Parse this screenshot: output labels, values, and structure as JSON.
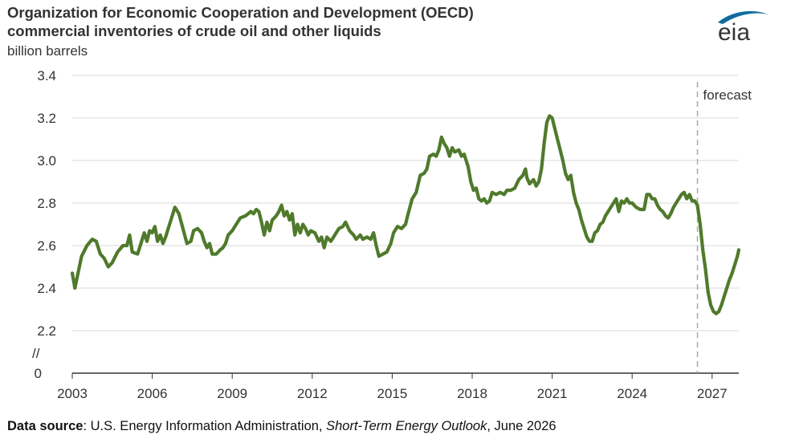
{
  "header": {
    "title_line1": "Organization for Economic Cooperation and Development (OECD)",
    "title_line2": "commercial inventories of crude oil  and other liquids",
    "units": "billion barrels",
    "logo_text": "eia"
  },
  "source": {
    "label": "Data source",
    "text_before": ": U.S. Energy Information Administration, ",
    "publication": "Short-Term Energy Outlook",
    "text_after": ", June 2026"
  },
  "colors": {
    "line": "#4f7a2b",
    "grid": "#d9d9d9",
    "axis": "#333333",
    "forecast_line": "#aaaaaa",
    "logo": "#0f6c9e"
  },
  "chart_data": {
    "type": "line",
    "title": "Organization for Economic Cooperation and Development (OECD) commercial inventories of crude oil  and other liquids",
    "ylabel": "billion barrels",
    "xlabel": "",
    "ylim": [
      2.2,
      3.4
    ],
    "y_axis_break": true,
    "y_ticks": [
      "0",
      "2.2",
      "2.4",
      "2.6",
      "2.8",
      "3.0",
      "3.2",
      "3.4"
    ],
    "y_break_symbol": "//",
    "x_ticks": [
      "2003",
      "2006",
      "2009",
      "2012",
      "2015",
      "2018",
      "2021",
      "2024",
      "2027"
    ],
    "xlim": [
      2003.0,
      2028.0
    ],
    "grid": true,
    "forecast_start": 2026.45,
    "forecast_label": "forecast",
    "series": [
      {
        "values": [
          [
            2003.0,
            2.47
          ],
          [
            2003.1,
            2.4
          ],
          [
            2003.2,
            2.46
          ],
          [
            2003.35,
            2.55
          ],
          [
            2003.55,
            2.6
          ],
          [
            2003.75,
            2.63
          ],
          [
            2003.9,
            2.62
          ],
          [
            2004.05,
            2.56
          ],
          [
            2004.2,
            2.54
          ],
          [
            2004.35,
            2.5
          ],
          [
            2004.5,
            2.52
          ],
          [
            2004.7,
            2.57
          ],
          [
            2004.9,
            2.6
          ],
          [
            2005.05,
            2.6
          ],
          [
            2005.15,
            2.65
          ],
          [
            2005.25,
            2.57
          ],
          [
            2005.45,
            2.56
          ],
          [
            2005.55,
            2.6
          ],
          [
            2005.7,
            2.66
          ],
          [
            2005.8,
            2.62
          ],
          [
            2005.9,
            2.67
          ],
          [
            2006.0,
            2.66
          ],
          [
            2006.1,
            2.69
          ],
          [
            2006.2,
            2.62
          ],
          [
            2006.3,
            2.65
          ],
          [
            2006.4,
            2.61
          ],
          [
            2006.5,
            2.64
          ],
          [
            2006.6,
            2.68
          ],
          [
            2006.75,
            2.74
          ],
          [
            2006.85,
            2.78
          ],
          [
            2007.0,
            2.75
          ],
          [
            2007.15,
            2.68
          ],
          [
            2007.3,
            2.61
          ],
          [
            2007.45,
            2.62
          ],
          [
            2007.55,
            2.67
          ],
          [
            2007.7,
            2.68
          ],
          [
            2007.85,
            2.66
          ],
          [
            2007.95,
            2.62
          ],
          [
            2008.05,
            2.59
          ],
          [
            2008.15,
            2.61
          ],
          [
            2008.25,
            2.56
          ],
          [
            2008.4,
            2.56
          ],
          [
            2008.55,
            2.58
          ],
          [
            2008.65,
            2.59
          ],
          [
            2008.75,
            2.61
          ],
          [
            2008.85,
            2.65
          ],
          [
            2009.0,
            2.67
          ],
          [
            2009.15,
            2.7
          ],
          [
            2009.3,
            2.73
          ],
          [
            2009.5,
            2.74
          ],
          [
            2009.7,
            2.76
          ],
          [
            2009.8,
            2.75
          ],
          [
            2009.9,
            2.77
          ],
          [
            2010.0,
            2.76
          ],
          [
            2010.1,
            2.71
          ],
          [
            2010.2,
            2.65
          ],
          [
            2010.3,
            2.71
          ],
          [
            2010.4,
            2.67
          ],
          [
            2010.5,
            2.72
          ],
          [
            2010.65,
            2.74
          ],
          [
            2010.75,
            2.76
          ],
          [
            2010.85,
            2.79
          ],
          [
            2010.95,
            2.74
          ],
          [
            2011.05,
            2.76
          ],
          [
            2011.15,
            2.72
          ],
          [
            2011.25,
            2.75
          ],
          [
            2011.35,
            2.65
          ],
          [
            2011.45,
            2.7
          ],
          [
            2011.55,
            2.66
          ],
          [
            2011.65,
            2.7
          ],
          [
            2011.75,
            2.68
          ],
          [
            2011.85,
            2.65
          ],
          [
            2011.95,
            2.67
          ],
          [
            2012.1,
            2.66
          ],
          [
            2012.25,
            2.62
          ],
          [
            2012.35,
            2.64
          ],
          [
            2012.45,
            2.59
          ],
          [
            2012.55,
            2.64
          ],
          [
            2012.7,
            2.62
          ],
          [
            2012.85,
            2.65
          ],
          [
            2013.0,
            2.68
          ],
          [
            2013.15,
            2.69
          ],
          [
            2013.25,
            2.71
          ],
          [
            2013.4,
            2.67
          ],
          [
            2013.55,
            2.65
          ],
          [
            2013.65,
            2.63
          ],
          [
            2013.8,
            2.65
          ],
          [
            2013.9,
            2.63
          ],
          [
            2014.05,
            2.64
          ],
          [
            2014.2,
            2.63
          ],
          [
            2014.3,
            2.66
          ],
          [
            2014.4,
            2.6
          ],
          [
            2014.5,
            2.55
          ],
          [
            2014.65,
            2.56
          ],
          [
            2014.8,
            2.57
          ],
          [
            2014.95,
            2.61
          ],
          [
            2015.05,
            2.66
          ],
          [
            2015.2,
            2.69
          ],
          [
            2015.35,
            2.68
          ],
          [
            2015.5,
            2.7
          ],
          [
            2015.6,
            2.75
          ],
          [
            2015.75,
            2.82
          ],
          [
            2015.9,
            2.85
          ],
          [
            2016.05,
            2.93
          ],
          [
            2016.2,
            2.94
          ],
          [
            2016.3,
            2.96
          ],
          [
            2016.4,
            3.02
          ],
          [
            2016.55,
            3.03
          ],
          [
            2016.65,
            3.02
          ],
          [
            2016.75,
            3.05
          ],
          [
            2016.85,
            3.11
          ],
          [
            2016.95,
            3.08
          ],
          [
            2017.05,
            3.06
          ],
          [
            2017.15,
            3.02
          ],
          [
            2017.25,
            3.06
          ],
          [
            2017.35,
            3.04
          ],
          [
            2017.5,
            3.05
          ],
          [
            2017.6,
            3.02
          ],
          [
            2017.7,
            3.03
          ],
          [
            2017.85,
            2.97
          ],
          [
            2017.95,
            2.9
          ],
          [
            2018.05,
            2.86
          ],
          [
            2018.15,
            2.87
          ],
          [
            2018.25,
            2.82
          ],
          [
            2018.35,
            2.81
          ],
          [
            2018.45,
            2.82
          ],
          [
            2018.55,
            2.8
          ],
          [
            2018.65,
            2.81
          ],
          [
            2018.75,
            2.85
          ],
          [
            2018.9,
            2.84
          ],
          [
            2019.05,
            2.85
          ],
          [
            2019.2,
            2.84
          ],
          [
            2019.3,
            2.86
          ],
          [
            2019.45,
            2.86
          ],
          [
            2019.6,
            2.87
          ],
          [
            2019.75,
            2.91
          ],
          [
            2019.9,
            2.93
          ],
          [
            2020.0,
            2.96
          ],
          [
            2020.05,
            2.92
          ],
          [
            2020.15,
            2.89
          ],
          [
            2020.3,
            2.91
          ],
          [
            2020.4,
            2.88
          ],
          [
            2020.5,
            2.9
          ],
          [
            2020.6,
            2.96
          ],
          [
            2020.7,
            3.08
          ],
          [
            2020.8,
            3.18
          ],
          [
            2020.9,
            3.21
          ],
          [
            2021.0,
            3.2
          ],
          [
            2021.1,
            3.15
          ],
          [
            2021.2,
            3.1
          ],
          [
            2021.3,
            3.05
          ],
          [
            2021.4,
            3.0
          ],
          [
            2021.5,
            2.94
          ],
          [
            2021.6,
            2.91
          ],
          [
            2021.7,
            2.93
          ],
          [
            2021.8,
            2.85
          ],
          [
            2021.9,
            2.8
          ],
          [
            2022.0,
            2.77
          ],
          [
            2022.1,
            2.72
          ],
          [
            2022.2,
            2.68
          ],
          [
            2022.3,
            2.64
          ],
          [
            2022.4,
            2.62
          ],
          [
            2022.5,
            2.62
          ],
          [
            2022.6,
            2.66
          ],
          [
            2022.7,
            2.67
          ],
          [
            2022.8,
            2.7
          ],
          [
            2022.9,
            2.71
          ],
          [
            2023.0,
            2.74
          ],
          [
            2023.1,
            2.76
          ],
          [
            2023.2,
            2.78
          ],
          [
            2023.3,
            2.8
          ],
          [
            2023.4,
            2.82
          ],
          [
            2023.5,
            2.76
          ],
          [
            2023.6,
            2.81
          ],
          [
            2023.7,
            2.8
          ],
          [
            2023.8,
            2.82
          ],
          [
            2023.9,
            2.8
          ],
          [
            2024.0,
            2.8
          ],
          [
            2024.15,
            2.78
          ],
          [
            2024.3,
            2.77
          ],
          [
            2024.45,
            2.77
          ],
          [
            2024.55,
            2.84
          ],
          [
            2024.65,
            2.84
          ],
          [
            2024.75,
            2.82
          ],
          [
            2024.85,
            2.82
          ],
          [
            2024.95,
            2.79
          ],
          [
            2025.05,
            2.77
          ],
          [
            2025.15,
            2.76
          ],
          [
            2025.25,
            2.74
          ],
          [
            2025.35,
            2.73
          ],
          [
            2025.45,
            2.75
          ],
          [
            2025.55,
            2.78
          ],
          [
            2025.65,
            2.8
          ],
          [
            2025.75,
            2.82
          ],
          [
            2025.85,
            2.84
          ],
          [
            2025.95,
            2.85
          ],
          [
            2026.05,
            2.82
          ],
          [
            2026.15,
            2.84
          ],
          [
            2026.25,
            2.81
          ],
          [
            2026.35,
            2.81
          ],
          [
            2026.45,
            2.79
          ],
          [
            2026.55,
            2.7
          ],
          [
            2026.65,
            2.58
          ],
          [
            2026.75,
            2.49
          ],
          [
            2026.85,
            2.38
          ],
          [
            2026.95,
            2.32
          ],
          [
            2027.05,
            2.29
          ],
          [
            2027.15,
            2.28
          ],
          [
            2027.25,
            2.29
          ],
          [
            2027.35,
            2.32
          ],
          [
            2027.45,
            2.36
          ],
          [
            2027.55,
            2.4
          ],
          [
            2027.65,
            2.44
          ],
          [
            2027.75,
            2.47
          ],
          [
            2027.85,
            2.51
          ],
          [
            2027.95,
            2.55
          ],
          [
            2028.0,
            2.58
          ]
        ]
      }
    ]
  }
}
